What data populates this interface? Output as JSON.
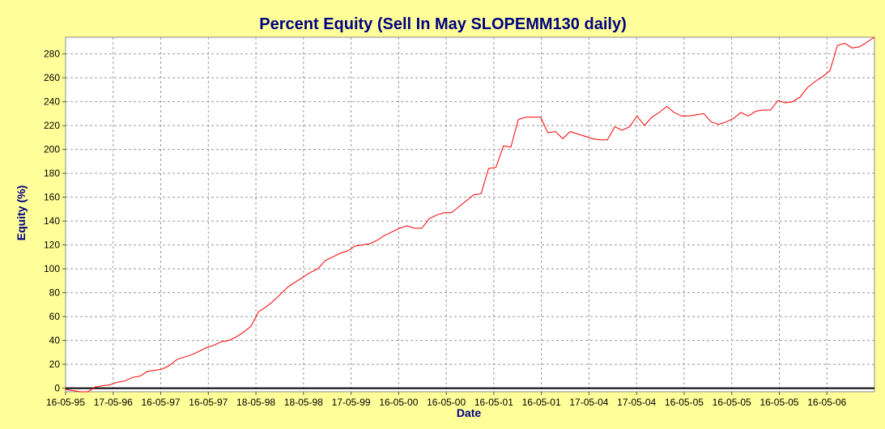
{
  "chart_data": {
    "type": "line",
    "title": "Percent Equity (Sell In May SLOPEMM130 daily)",
    "xlabel": "Date",
    "ylabel": "Equity (%)",
    "ylim": [
      -3,
      294
    ],
    "y_ticks": [
      0,
      20,
      40,
      60,
      80,
      100,
      120,
      140,
      160,
      180,
      200,
      220,
      240,
      260,
      280
    ],
    "x_ticks": [
      "16-05-95",
      "17-05-96",
      "16-05-97",
      "16-05-97",
      "18-05-98",
      "18-05-98",
      "17-05-99",
      "16-05-00",
      "16-05-00",
      "16-05-01",
      "16-05-01",
      "17-05-04",
      "17-05-04",
      "16-05-05",
      "16-05-05",
      "16-05-05",
      "16-05-06"
    ],
    "grid": true,
    "zero_line": true,
    "series": [
      {
        "color": "#ff0000",
        "values": [
          -1,
          -2,
          -3,
          -3,
          1,
          2,
          3,
          5,
          6,
          9,
          10,
          14,
          15,
          16,
          19,
          24,
          26,
          28,
          31,
          34,
          36,
          39,
          40,
          43,
          47,
          52,
          64,
          68,
          73,
          79,
          85,
          89,
          93,
          97,
          100,
          107,
          110,
          113,
          115,
          119,
          120,
          121,
          124,
          128,
          131,
          134,
          136,
          134,
          134,
          142,
          145,
          147,
          147,
          152,
          157,
          162,
          163,
          184,
          185,
          203,
          202,
          225,
          227,
          227,
          227,
          214,
          215,
          209,
          215,
          213,
          211,
          209,
          208,
          208,
          219,
          216,
          219,
          228,
          220,
          227,
          231,
          236,
          231,
          228,
          228,
          229,
          230,
          223,
          221,
          223,
          226,
          231,
          228,
          232,
          233,
          233,
          241,
          239,
          240,
          244,
          252,
          257,
          261,
          266,
          287,
          289,
          285,
          286,
          290,
          294
        ]
      }
    ]
  }
}
